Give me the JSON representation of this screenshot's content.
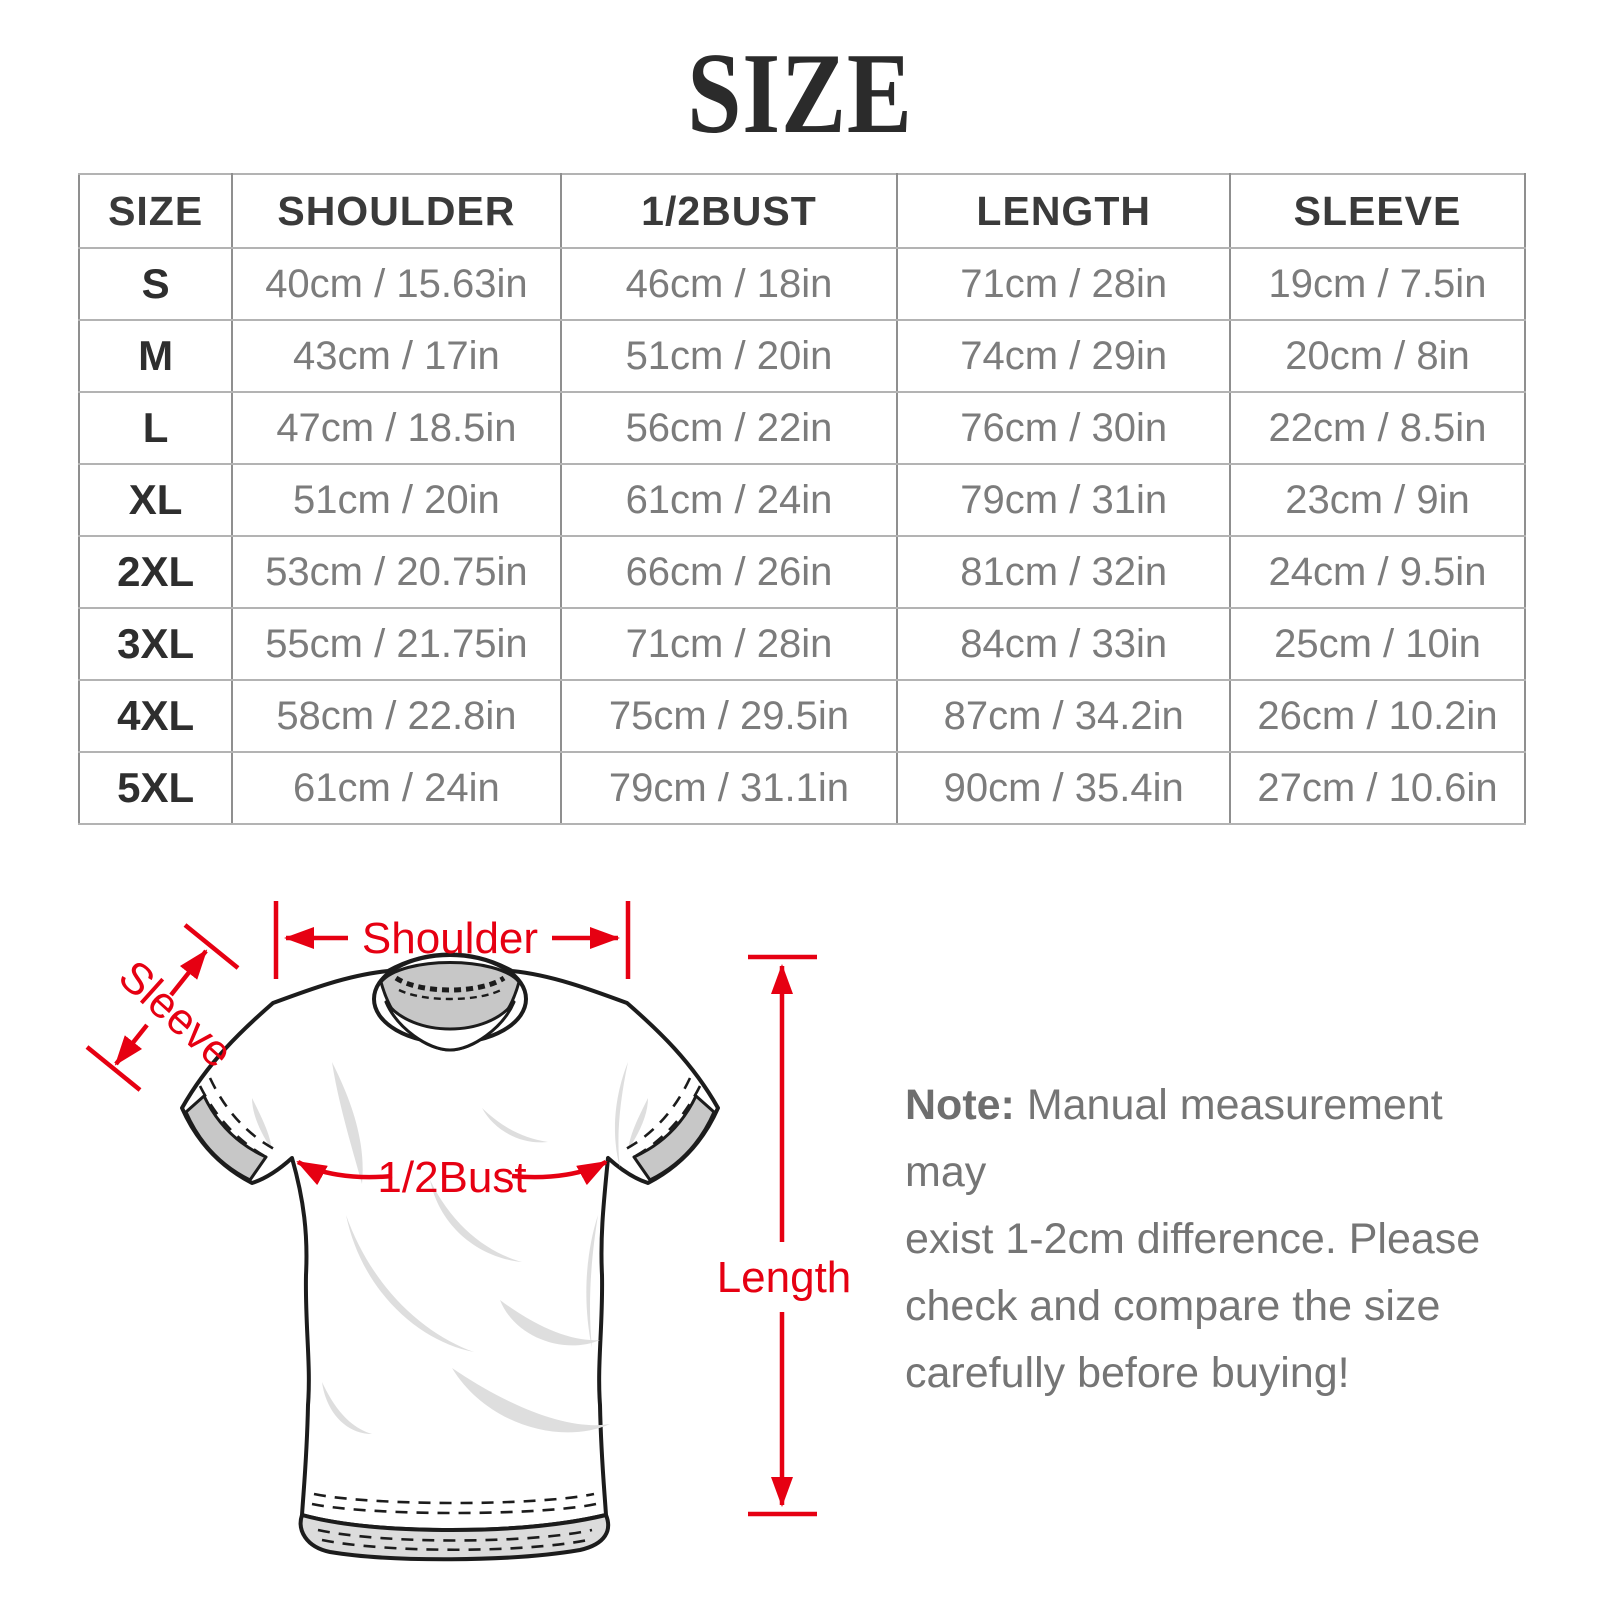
{
  "title": "SIZE",
  "table": {
    "headers": [
      "SIZE",
      "SHOULDER",
      "1/2BUST",
      "LENGTH",
      "SLEEVE"
    ],
    "rows": [
      [
        "S",
        "40cm / 15.63in",
        "46cm / 18in",
        "71cm / 28in",
        "19cm / 7.5in"
      ],
      [
        "M",
        "43cm / 17in",
        "51cm / 20in",
        "74cm / 29in",
        "20cm / 8in"
      ],
      [
        "L",
        "47cm / 18.5in",
        "56cm / 22in",
        "76cm / 30in",
        "22cm / 8.5in"
      ],
      [
        "XL",
        "51cm / 20in",
        "61cm / 24in",
        "79cm / 31in",
        "23cm / 9in"
      ],
      [
        "2XL",
        "53cm / 20.75in",
        "66cm / 26in",
        "81cm / 32in",
        "24cm / 9.5in"
      ],
      [
        "3XL",
        "55cm / 21.75in",
        "71cm / 28in",
        "84cm / 33in",
        "25cm / 10in"
      ],
      [
        "4XL",
        "58cm / 22.8in",
        "75cm / 29.5in",
        "87cm / 34.2in",
        "26cm / 10.2in"
      ],
      [
        "5XL",
        "61cm / 24in",
        "79cm / 31.1in",
        "90cm / 35.4in",
        "27cm / 10.6in"
      ]
    ]
  },
  "diagram": {
    "shoulder_label": "Shoulder",
    "sleeve_label": "Sleeve",
    "bust_label": "1/2Bust",
    "length_label": "Length",
    "accent_color": "#e60012"
  },
  "note": {
    "prefix": "Note:",
    "line1": "Manual measurement may",
    "line2": "exist 1-2cm difference. Please",
    "line3": "check and compare the size",
    "line4": "carefully before buying!"
  }
}
